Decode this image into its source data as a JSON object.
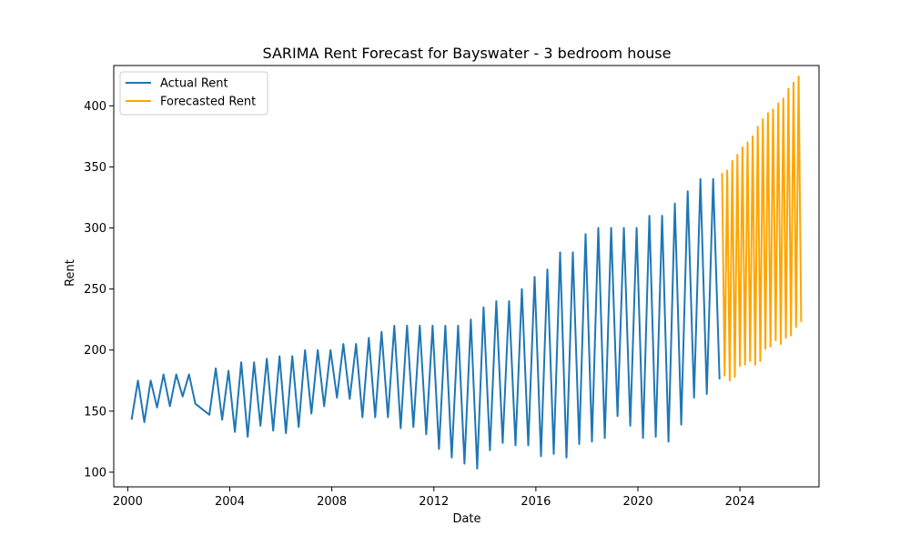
{
  "chart_data": {
    "type": "line",
    "title": "SARIMA Rent Forecast for Bayswater - 3 bedroom house",
    "xlabel": "Date",
    "ylabel": "Rent",
    "xlim": [
      1999.45,
      2027.1
    ],
    "ylim": [
      88,
      433
    ],
    "x_ticks": [
      2000,
      2004,
      2008,
      2012,
      2016,
      2020,
      2024
    ],
    "x_tick_labels": [
      "2000",
      "2004",
      "2008",
      "2012",
      "2016",
      "2020",
      "2024"
    ],
    "y_ticks": [
      100,
      150,
      200,
      250,
      300,
      350,
      400
    ],
    "y_tick_labels": [
      "100",
      "150",
      "200",
      "250",
      "300",
      "350",
      "400"
    ],
    "grid": false,
    "legend_position": "top-left",
    "series": [
      {
        "name": "Actual Rent",
        "color": "#1f77b4",
        "points": [
          [
            2000.15,
            143
          ],
          [
            2000.4,
            175
          ],
          [
            2000.65,
            141
          ],
          [
            2000.9,
            175
          ],
          [
            2001.15,
            153
          ],
          [
            2001.4,
            180
          ],
          [
            2001.65,
            154
          ],
          [
            2001.9,
            180
          ],
          [
            2002.15,
            162
          ],
          [
            2002.4,
            180
          ],
          [
            2002.65,
            156
          ],
          [
            2003.2,
            147
          ],
          [
            2003.45,
            185
          ],
          [
            2003.7,
            143
          ],
          [
            2003.95,
            183
          ],
          [
            2004.2,
            133
          ],
          [
            2004.45,
            190
          ],
          [
            2004.7,
            129
          ],
          [
            2004.95,
            190
          ],
          [
            2005.2,
            138
          ],
          [
            2005.45,
            193
          ],
          [
            2005.7,
            134
          ],
          [
            2005.95,
            195
          ],
          [
            2006.2,
            132
          ],
          [
            2006.45,
            195
          ],
          [
            2006.7,
            137
          ],
          [
            2006.95,
            200
          ],
          [
            2007.2,
            148
          ],
          [
            2007.45,
            200
          ],
          [
            2007.7,
            154
          ],
          [
            2007.95,
            200
          ],
          [
            2008.2,
            161
          ],
          [
            2008.45,
            205
          ],
          [
            2008.7,
            160
          ],
          [
            2008.95,
            205
          ],
          [
            2009.2,
            145
          ],
          [
            2009.45,
            210
          ],
          [
            2009.7,
            145
          ],
          [
            2009.95,
            215
          ],
          [
            2010.2,
            145
          ],
          [
            2010.45,
            220
          ],
          [
            2010.7,
            136
          ],
          [
            2010.95,
            220
          ],
          [
            2011.2,
            137
          ],
          [
            2011.45,
            220
          ],
          [
            2011.7,
            131
          ],
          [
            2011.95,
            220
          ],
          [
            2012.2,
            119
          ],
          [
            2012.45,
            220
          ],
          [
            2012.7,
            112
          ],
          [
            2012.95,
            220
          ],
          [
            2013.2,
            107
          ],
          [
            2013.45,
            225
          ],
          [
            2013.7,
            103
          ],
          [
            2013.95,
            235
          ],
          [
            2014.2,
            118
          ],
          [
            2014.45,
            240
          ],
          [
            2014.7,
            124
          ],
          [
            2014.95,
            240
          ],
          [
            2015.2,
            122
          ],
          [
            2015.45,
            250
          ],
          [
            2015.7,
            122
          ],
          [
            2015.95,
            260
          ],
          [
            2016.2,
            113
          ],
          [
            2016.45,
            266
          ],
          [
            2016.7,
            115
          ],
          [
            2016.95,
            280
          ],
          [
            2017.2,
            112
          ],
          [
            2017.45,
            280
          ],
          [
            2017.7,
            123
          ],
          [
            2017.95,
            295
          ],
          [
            2018.2,
            125
          ],
          [
            2018.45,
            300
          ],
          [
            2018.7,
            128
          ],
          [
            2018.95,
            300
          ],
          [
            2019.2,
            146
          ],
          [
            2019.45,
            300
          ],
          [
            2019.7,
            138
          ],
          [
            2019.95,
            300
          ],
          [
            2020.2,
            128
          ],
          [
            2020.45,
            310
          ],
          [
            2020.7,
            129
          ],
          [
            2020.95,
            310
          ],
          [
            2021.2,
            125
          ],
          [
            2021.45,
            320
          ],
          [
            2021.7,
            139
          ],
          [
            2021.95,
            330
          ],
          [
            2022.2,
            161
          ],
          [
            2022.45,
            340
          ],
          [
            2022.7,
            164
          ],
          [
            2022.95,
            340
          ],
          [
            2023.2,
            176
          ]
        ]
      },
      {
        "name": "Forecasted Rent",
        "color": "#ffa500",
        "points": [
          [
            2023.3,
            345
          ],
          [
            2023.4,
            179
          ],
          [
            2023.5,
            347
          ],
          [
            2023.6,
            175
          ],
          [
            2023.7,
            355
          ],
          [
            2023.8,
            178
          ],
          [
            2023.9,
            360
          ],
          [
            2024.0,
            187
          ],
          [
            2024.1,
            366
          ],
          [
            2024.2,
            188
          ],
          [
            2024.3,
            370
          ],
          [
            2024.4,
            191
          ],
          [
            2024.5,
            375
          ],
          [
            2024.6,
            188
          ],
          [
            2024.7,
            383
          ],
          [
            2024.8,
            191
          ],
          [
            2024.9,
            389
          ],
          [
            2025.0,
            201
          ],
          [
            2025.1,
            394
          ],
          [
            2025.2,
            203
          ],
          [
            2025.3,
            397
          ],
          [
            2025.4,
            208
          ],
          [
            2025.5,
            402
          ],
          [
            2025.6,
            205
          ],
          [
            2025.7,
            406
          ],
          [
            2025.8,
            210
          ],
          [
            2025.9,
            414
          ],
          [
            2026.0,
            212
          ],
          [
            2026.1,
            419
          ],
          [
            2026.2,
            219
          ],
          [
            2026.3,
            424
          ],
          [
            2026.4,
            223
          ]
        ]
      }
    ]
  }
}
